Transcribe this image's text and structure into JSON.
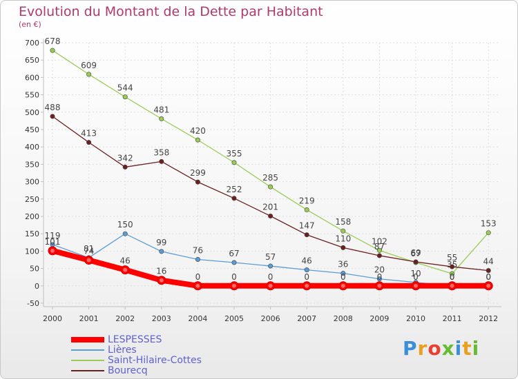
{
  "chart_data": {
    "type": "line",
    "title": "Evolution du Montant de la Dette par Habitant",
    "subtitle": "(en €)",
    "x": [
      "2000",
      "2001",
      "2002",
      "2003",
      "2004",
      "2005",
      "2006",
      "2007",
      "2008",
      "2009",
      "2010",
      "2011",
      "2012"
    ],
    "ylim": [
      -50,
      700
    ],
    "yticks": [
      -50,
      0,
      50,
      100,
      150,
      200,
      250,
      300,
      350,
      400,
      450,
      500,
      550,
      600,
      650,
      700
    ],
    "series": [
      {
        "name": "LESPESSES",
        "color": "#ff0000",
        "values": [
          101,
          74,
          46,
          16,
          0,
          0,
          0,
          0,
          0,
          0,
          0,
          0,
          0
        ]
      },
      {
        "name": "Lières",
        "color": "#5b9bd5",
        "values": [
          119,
          81,
          150,
          99,
          76,
          67,
          57,
          46,
          36,
          20,
          10,
          0,
          0
        ]
      },
      {
        "name": "Saint-Hilaire-Cottes",
        "color": "#99cc55",
        "values": [
          678,
          609,
          544,
          481,
          420,
          355,
          285,
          219,
          158,
          102,
          67,
          35,
          153
        ]
      },
      {
        "name": "Bourecq",
        "color": "#6b1f1f",
        "values": [
          488,
          413,
          342,
          358,
          299,
          252,
          201,
          147,
          110,
          87,
          69,
          55,
          44
        ]
      }
    ]
  },
  "legend_labels": [
    "LESPESSES",
    "Lières",
    "Saint-Hilaire-Cottes",
    "Bourecq"
  ],
  "logo_text": "Proxiti"
}
